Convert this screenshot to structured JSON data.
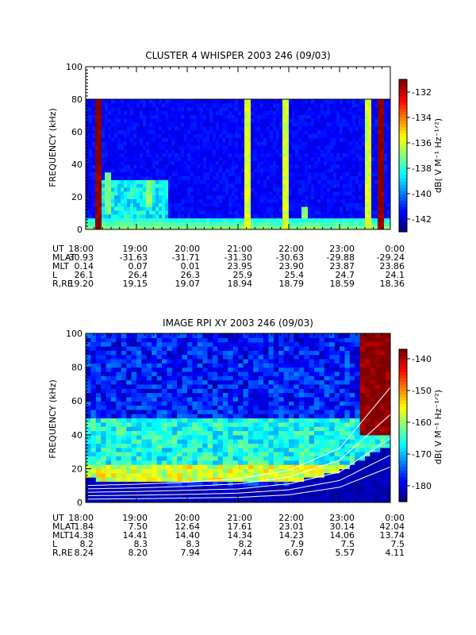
{
  "panels": [
    {
      "id": "cluster",
      "title": "CLUSTER 4 WHISPER 2003 246 (09/03)",
      "ylabel": "FREQUENCY (kHz)",
      "yticks": [
        "0",
        "20",
        "40",
        "60",
        "80",
        "100"
      ],
      "colorbar": {
        "label": "dB( V M⁻¹ Hz⁻¹ᐟ²)",
        "ticks": [
          "-132",
          "-134",
          "-136",
          "-138",
          "-140",
          "-142"
        ]
      },
      "ephem_labels": [
        "UT",
        "MLAT",
        "MLT",
        "L",
        "R,RE"
      ],
      "ephem": [
        [
          "18:00",
          "19:00",
          "20:00",
          "21:00",
          "22:00",
          "23:00",
          "0:00"
        ],
        [
          "-30.93",
          "-31.63",
          "-31.71",
          "-31.30",
          "-30.63",
          "-29.88",
          "-29.24"
        ],
        [
          "0.14",
          "0.07",
          "0.01",
          "23.95",
          "23.90",
          "23.87",
          "23.86"
        ],
        [
          "26.1",
          "26.4",
          "26.3",
          "25.9",
          "25.4",
          "24.7",
          "24.1"
        ],
        [
          "19.20",
          "19.15",
          "19.07",
          "18.94",
          "18.79",
          "18.59",
          "18.36"
        ]
      ]
    },
    {
      "id": "image",
      "title": "IMAGE RPI XY 2003 246 (09/03)",
      "ylabel": "FREQUENCY (kHz)",
      "yticks": [
        "0",
        "20",
        "40",
        "60",
        "80",
        "100"
      ],
      "colorbar": {
        "label": "dB( V M⁻¹ Hz⁻¹ᐟ²)",
        "ticks": [
          "-140",
          "-150",
          "-160",
          "-170",
          "-180"
        ]
      },
      "ephem_labels": [
        "UT",
        "MLAT",
        "MLT",
        "L",
        "R,RE"
      ],
      "ephem": [
        [
          "18:00",
          "19:00",
          "20:00",
          "21:00",
          "22:00",
          "23:00",
          "0:00"
        ],
        [
          "1.84",
          "7.50",
          "12.64",
          "17.61",
          "23.01",
          "30.14",
          "42.04"
        ],
        [
          "14.38",
          "14.41",
          "14.40",
          "14.34",
          "14.23",
          "14.06",
          "13.74"
        ],
        [
          "8.2",
          "8.3",
          "8.3",
          "8.2",
          "7.9",
          "7.5",
          "7.5"
        ],
        [
          "8.24",
          "8.20",
          "7.94",
          "7.44",
          "6.67",
          "5.57",
          "4.11"
        ]
      ]
    }
  ],
  "chart_data": [
    {
      "type": "heatmap",
      "title": "CLUSTER 4 WHISPER 2003 246 (09/03)",
      "xlabel": "",
      "ylabel": "FREQUENCY (kHz)",
      "xlim": [
        "18:00",
        "0:00"
      ],
      "ylim": [
        0,
        100
      ],
      "data_ceiling_khz": 80,
      "colorscale_db": [
        -143,
        -131
      ],
      "colorbar_ticks": [
        -132,
        -134,
        -136,
        -138,
        -140,
        -142
      ],
      "background_db": -141.5,
      "features": [
        {
          "ut": "18:15",
          "db": -131,
          "khz": [
            0,
            80
          ]
        },
        {
          "ut": "18:25",
          "db": -137,
          "khz": [
            10,
            35
          ]
        },
        {
          "ut": "19:15",
          "db": -137,
          "khz": [
            15,
            30
          ]
        },
        {
          "ut": "21:10",
          "db": -136,
          "khz": [
            0,
            80
          ]
        },
        {
          "ut": "21:55",
          "db": -136,
          "khz": [
            0,
            80
          ]
        },
        {
          "ut": "22:20",
          "db": -137,
          "khz": [
            8,
            14
          ]
        },
        {
          "ut": "23:35",
          "db": -136,
          "khz": [
            0,
            80
          ]
        },
        {
          "ut": "23:50",
          "db": -131,
          "khz": [
            0,
            80
          ]
        }
      ]
    },
    {
      "type": "heatmap",
      "title": "IMAGE RPI XY 2003 246 (09/03)",
      "xlabel": "",
      "ylabel": "FREQUENCY (kHz)",
      "xlim": [
        "18:00",
        "0:00"
      ],
      "ylim": [
        0,
        100
      ],
      "colorscale_db": [
        -185,
        -137
      ],
      "colorbar_ticks": [
        -140,
        -150,
        -160,
        -170,
        -180
      ],
      "bands": [
        {
          "khz": [
            12,
            22
          ],
          "db": -157
        },
        {
          "khz": [
            22,
            50
          ],
          "db": -166
        },
        {
          "khz": [
            50,
            100
          ],
          "db": -178
        }
      ],
      "low_frequency_cutoff_khz": [
        {
          "ut": "18:00",
          "khz": 14
        },
        {
          "ut": "19:00",
          "khz": 13
        },
        {
          "ut": "20:00",
          "khz": 10
        },
        {
          "ut": "21:00",
          "khz": 9
        },
        {
          "ut": "22:00",
          "khz": 11
        },
        {
          "ut": "23:00",
          "khz": 19
        },
        {
          "ut": "0:00",
          "khz": 34
        }
      ],
      "white_curves_khz": [
        [
          2,
          2.2,
          2.6,
          3,
          4.5,
          9,
          21
        ],
        [
          4,
          4.3,
          4.8,
          5.5,
          7.5,
          13,
          28
        ],
        [
          6,
          6.5,
          7.2,
          8,
          11,
          18,
          38
        ],
        [
          8,
          8.6,
          9.5,
          11,
          15,
          25,
          52
        ],
        [
          10,
          10.8,
          12,
          14,
          19,
          32,
          68
        ]
      ]
    }
  ]
}
